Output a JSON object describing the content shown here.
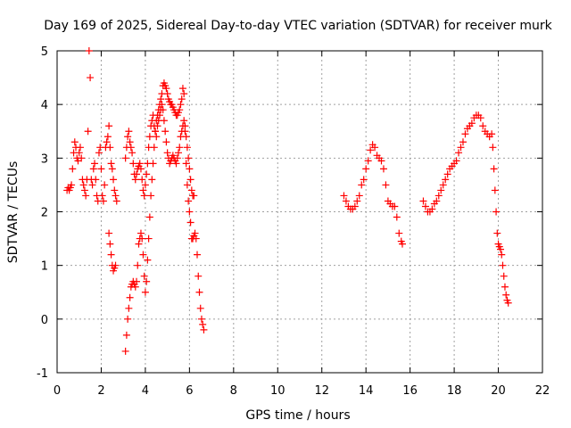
{
  "chart_data": {
    "type": "scatter",
    "title": "Day 169 of 2025, Sidereal Day-to-day VTEC variation (SDTVAR) for receiver murk",
    "xlabel": "GPS time / hours",
    "ylabel": "SDTVAR / TECUs",
    "xlim": [
      0,
      22
    ],
    "ylim": [
      -1,
      5
    ],
    "xticks": [
      0,
      2,
      4,
      6,
      8,
      10,
      12,
      14,
      16,
      18,
      20,
      22
    ],
    "yticks": [
      -1,
      0,
      1,
      2,
      3,
      4,
      5
    ],
    "grid": true,
    "marker": "+",
    "color": "#ff0000",
    "series": [
      {
        "name": "murk",
        "x": [
          0.45,
          0.5,
          0.55,
          0.6,
          0.65,
          0.7,
          0.75,
          0.8,
          0.85,
          0.9,
          0.95,
          1.0,
          1.05,
          1.1,
          1.15,
          1.2,
          1.25,
          1.3,
          1.35,
          1.4,
          1.45,
          1.5,
          1.55,
          1.6,
          1.65,
          1.7,
          1.75,
          1.8,
          1.85,
          1.9,
          1.95,
          2.0,
          2.05,
          2.1,
          2.15,
          2.2,
          2.25,
          2.3,
          2.35,
          2.4,
          2.45,
          2.5,
          2.55,
          2.6,
          2.65,
          2.7,
          2.35,
          2.4,
          2.45,
          2.5,
          2.55,
          2.6,
          2.65,
          3.1,
          3.15,
          3.2,
          3.25,
          3.3,
          3.35,
          3.4,
          3.45,
          3.5,
          3.55,
          3.6,
          3.65,
          3.7,
          3.75,
          3.8,
          3.85,
          3.9,
          3.95,
          4.0,
          4.05,
          4.1,
          4.15,
          4.2,
          4.25,
          4.3,
          4.35,
          4.4,
          4.45,
          4.5,
          4.55,
          4.6,
          4.65,
          4.7,
          4.75,
          4.8,
          4.85,
          4.9,
          4.95,
          5.0,
          5.05,
          5.1,
          5.15,
          5.2,
          5.25,
          5.3,
          5.35,
          5.4,
          5.45,
          5.5,
          5.55,
          5.6,
          5.65,
          5.7,
          5.75,
          5.8,
          5.85,
          5.9,
          5.95,
          6.0,
          6.05,
          6.1,
          6.15,
          6.2,
          6.25,
          6.3,
          6.35,
          6.4,
          6.45,
          6.5,
          6.55,
          6.6,
          6.65,
          3.1,
          3.15,
          3.2,
          3.25,
          3.3,
          3.35,
          3.4,
          3.45,
          3.5,
          3.55,
          3.6,
          3.65,
          3.7,
          3.75,
          3.8,
          3.85,
          3.9,
          3.95,
          4.0,
          4.05,
          4.1,
          4.15,
          4.2,
          4.25,
          4.3,
          4.35,
          4.4,
          4.45,
          4.5,
          4.55,
          4.6,
          4.65,
          4.7,
          4.75,
          4.8,
          4.85,
          4.9,
          4.95,
          5.0,
          5.05,
          5.1,
          5.15,
          5.2,
          5.25,
          5.3,
          5.35,
          5.4,
          5.45,
          5.5,
          5.55,
          5.6,
          5.65,
          5.7,
          5.75,
          5.8,
          5.85,
          5.9,
          5.95,
          6.0,
          6.05,
          6.1,
          6.15,
          6.2,
          13.0,
          13.1,
          13.2,
          13.3,
          13.4,
          13.5,
          13.6,
          13.7,
          13.8,
          13.9,
          14.0,
          14.1,
          14.2,
          14.3,
          14.4,
          14.5,
          14.6,
          14.7,
          14.8,
          14.9,
          15.0,
          15.1,
          15.2,
          15.3,
          15.4,
          15.5,
          15.6,
          15.65,
          16.6,
          16.7,
          16.8,
          16.9,
          17.0,
          17.1,
          17.2,
          17.3,
          17.4,
          17.5,
          17.6,
          17.7,
          17.8,
          17.9,
          18.0,
          18.1,
          18.2,
          18.3,
          18.4,
          18.5,
          18.6,
          18.7,
          18.8,
          18.9,
          19.0,
          19.1,
          19.2,
          19.3,
          19.4,
          19.5,
          19.6,
          19.7,
          19.75,
          19.8,
          19.85,
          19.9,
          19.95,
          20.0,
          20.05,
          20.1,
          20.15,
          20.2,
          20.25,
          20.3,
          20.35,
          20.4,
          20.45
        ],
        "y": [
          2.4,
          2.45,
          2.4,
          2.45,
          2.5,
          2.8,
          3.1,
          3.3,
          3.2,
          3.0,
          2.95,
          3.1,
          3.2,
          3.0,
          2.6,
          2.5,
          2.4,
          2.3,
          2.6,
          3.5,
          5.0,
          4.5,
          2.6,
          2.5,
          2.8,
          2.9,
          2.6,
          2.3,
          2.2,
          3.1,
          3.2,
          2.8,
          2.3,
          2.2,
          2.5,
          3.2,
          3.3,
          3.4,
          3.6,
          3.2,
          2.9,
          2.8,
          2.6,
          2.4,
          2.3,
          2.2,
          1.6,
          1.4,
          1.2,
          1.0,
          0.9,
          0.95,
          1.0,
          -0.6,
          -0.3,
          0.0,
          0.2,
          0.4,
          0.6,
          0.65,
          0.7,
          0.65,
          0.6,
          0.7,
          1.0,
          1.4,
          1.5,
          1.6,
          1.5,
          1.2,
          0.8,
          0.5,
          0.7,
          1.1,
          1.5,
          1.9,
          2.3,
          2.6,
          2.9,
          3.2,
          3.5,
          3.7,
          3.8,
          3.9,
          4.0,
          4.1,
          4.2,
          4.35,
          4.4,
          4.35,
          4.3,
          4.2,
          4.1,
          4.05,
          4.0,
          4.0,
          3.95,
          3.9,
          3.85,
          3.8,
          3.8,
          3.85,
          3.9,
          4.0,
          4.1,
          4.3,
          4.2,
          3.5,
          2.9,
          2.5,
          2.2,
          2.0,
          1.8,
          1.5,
          1.5,
          1.55,
          1.6,
          1.5,
          1.2,
          0.8,
          0.5,
          0.2,
          0.0,
          -0.1,
          -0.2,
          3.0,
          3.2,
          3.4,
          3.5,
          3.3,
          3.2,
          3.1,
          2.9,
          2.7,
          2.6,
          2.7,
          2.8,
          2.85,
          2.9,
          2.8,
          2.6,
          2.4,
          2.3,
          2.5,
          2.7,
          2.9,
          3.2,
          3.4,
          3.6,
          3.7,
          3.8,
          3.6,
          3.5,
          3.4,
          3.6,
          3.7,
          3.8,
          3.9,
          4.0,
          3.9,
          3.7,
          3.5,
          3.3,
          3.1,
          3.0,
          2.9,
          2.95,
          3.0,
          3.05,
          3.0,
          2.95,
          2.9,
          3.0,
          3.1,
          3.2,
          3.4,
          3.5,
          3.6,
          3.7,
          3.6,
          3.4,
          3.2,
          3.0,
          2.8,
          2.6,
          2.4,
          2.3,
          2.3,
          2.3,
          2.2,
          2.1,
          2.05,
          2.05,
          2.1,
          2.2,
          2.3,
          2.5,
          2.6,
          2.8,
          2.95,
          3.15,
          3.25,
          3.2,
          3.05,
          3.0,
          2.95,
          2.8,
          2.5,
          2.2,
          2.15,
          2.1,
          2.1,
          1.9,
          1.6,
          1.45,
          1.4,
          2.2,
          2.1,
          2.0,
          2.0,
          2.05,
          2.15,
          2.2,
          2.3,
          2.4,
          2.5,
          2.6,
          2.7,
          2.8,
          2.85,
          2.9,
          2.95,
          3.1,
          3.2,
          3.3,
          3.45,
          3.55,
          3.6,
          3.65,
          3.75,
          3.8,
          3.8,
          3.75,
          3.6,
          3.5,
          3.45,
          3.4,
          3.45,
          3.2,
          2.8,
          2.4,
          2.0,
          1.6,
          1.4,
          1.35,
          1.3,
          1.2,
          1.0,
          0.8,
          0.6,
          0.45,
          0.35,
          0.3
        ]
      }
    ]
  }
}
